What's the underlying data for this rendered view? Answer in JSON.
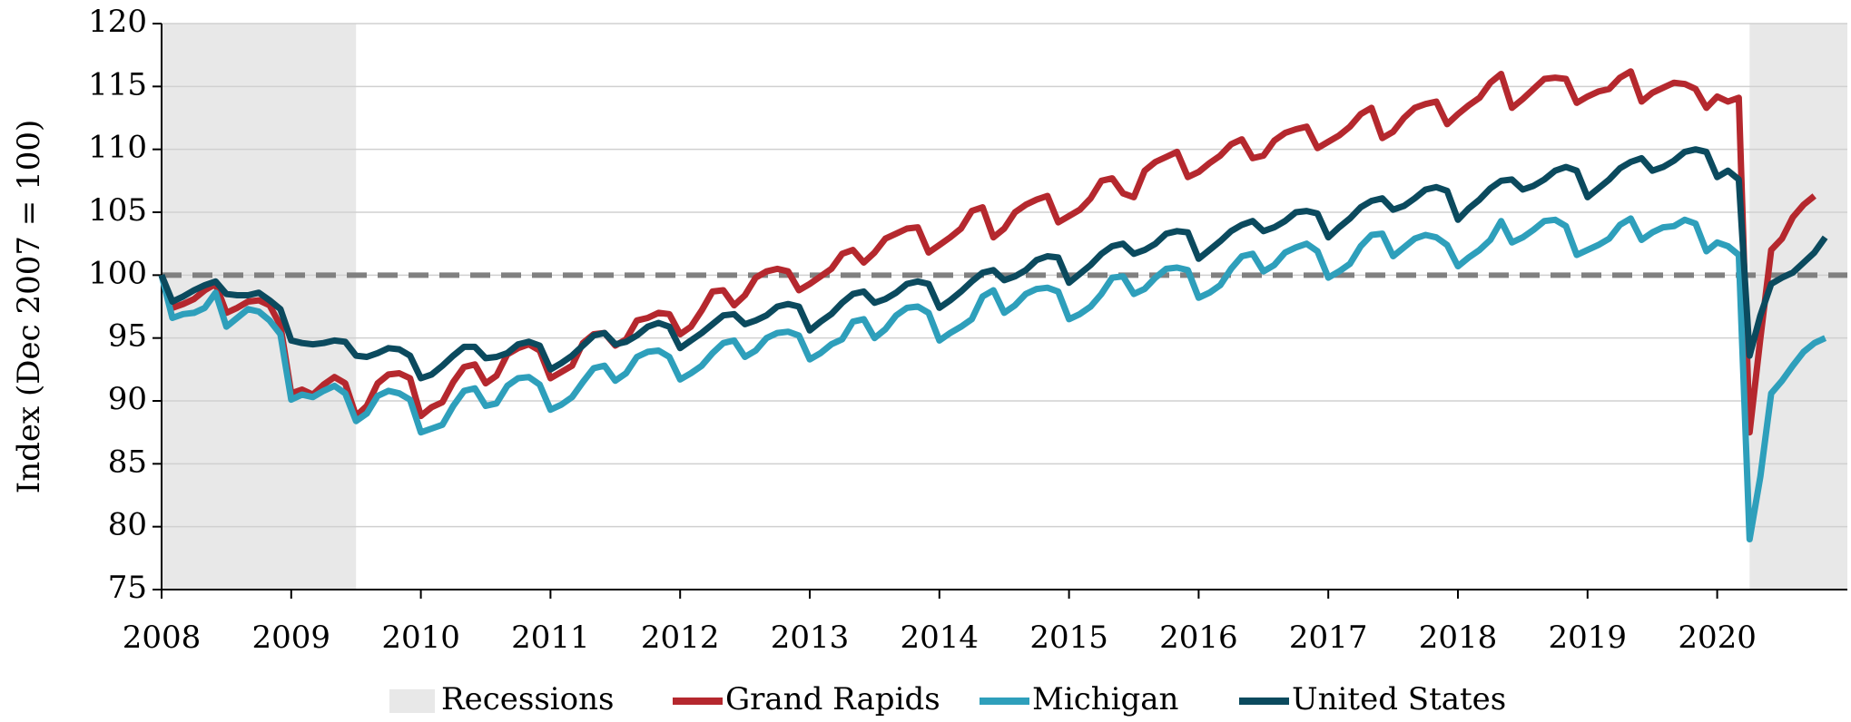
{
  "chart_data": {
    "type": "line",
    "y_label": "Index (Dec 2007 = 100)",
    "categories": [
      "2008",
      null,
      null,
      null,
      null,
      null,
      null,
      null,
      null,
      null,
      null,
      null,
      "2009",
      null,
      null,
      null,
      null,
      null,
      null,
      null,
      null,
      null,
      null,
      null,
      "2010",
      null,
      null,
      null,
      null,
      null,
      null,
      null,
      null,
      null,
      null,
      null,
      "2011",
      null,
      null,
      null,
      null,
      null,
      null,
      null,
      null,
      null,
      null,
      null,
      "2012",
      null,
      null,
      null,
      null,
      null,
      null,
      null,
      null,
      null,
      null,
      null,
      "2013",
      null,
      null,
      null,
      null,
      null,
      null,
      null,
      null,
      null,
      null,
      null,
      "2014",
      null,
      null,
      null,
      null,
      null,
      null,
      null,
      null,
      null,
      null,
      null,
      "2015",
      null,
      null,
      null,
      null,
      null,
      null,
      null,
      null,
      null,
      null,
      null,
      "2016",
      null,
      null,
      null,
      null,
      null,
      null,
      null,
      null,
      null,
      null,
      null,
      "2017",
      null,
      null,
      null,
      null,
      null,
      null,
      null,
      null,
      null,
      null,
      null,
      "2018",
      null,
      null,
      null,
      null,
      null,
      null,
      null,
      null,
      null,
      null,
      null,
      "2019",
      null,
      null,
      null,
      null,
      null,
      null,
      null,
      null,
      null,
      null,
      null,
      "2020",
      null,
      null,
      null,
      null,
      null,
      null,
      null,
      null,
      null,
      null
    ],
    "ylim": [
      75,
      120
    ],
    "yticks": [
      75,
      80,
      85,
      90,
      95,
      100,
      105,
      110,
      115,
      120
    ],
    "grid": true,
    "reference_line": {
      "value": 100,
      "color": "#808080"
    },
    "recessions": {
      "name": "Recessions",
      "color": "#e8e8e8",
      "spans": [
        [
          0,
          18
        ],
        [
          147,
          154
        ]
      ]
    },
    "series": [
      {
        "name": "Grand Rapids",
        "color": "#b5282e",
        "values": [
          100,
          97.4,
          97.7,
          98.1,
          98.8,
          99.3,
          97.0,
          97.4,
          97.9,
          98.0,
          97.6,
          96.0,
          90.6,
          90.9,
          90.5,
          91.3,
          91.9,
          91.4,
          88.8,
          89.6,
          91.4,
          92.1,
          92.2,
          91.8,
          88.8,
          89.5,
          89.9,
          91.5,
          92.7,
          92.9,
          91.4,
          92.0,
          93.7,
          94.2,
          94.5,
          94.0,
          91.8,
          92.3,
          92.8,
          94.6,
          95.3,
          95.4,
          94.4,
          94.9,
          96.4,
          96.6,
          97.0,
          96.9,
          95.3,
          95.9,
          97.2,
          98.7,
          98.8,
          97.6,
          98.4,
          99.8,
          100.3,
          100.5,
          100.3,
          98.8,
          99.3,
          99.9,
          100.5,
          101.7,
          102.0,
          101.0,
          101.8,
          102.9,
          103.3,
          103.7,
          103.8,
          101.8,
          102.4,
          103.0,
          103.7,
          105.1,
          105.4,
          103.0,
          103.7,
          105.0,
          105.6,
          106.0,
          106.3,
          104.2,
          104.7,
          105.2,
          106.1,
          107.5,
          107.7,
          106.5,
          106.2,
          108.3,
          109.0,
          109.4,
          109.8,
          107.8,
          108.2,
          108.9,
          109.5,
          110.4,
          110.8,
          109.3,
          109.5,
          110.7,
          111.3,
          111.6,
          111.8,
          110.1,
          110.6,
          111.1,
          111.8,
          112.8,
          113.3,
          110.9,
          111.4,
          112.5,
          113.3,
          113.6,
          113.8,
          112.0,
          112.8,
          113.5,
          114.1,
          115.3,
          116.0,
          113.3,
          114.0,
          114.8,
          115.6,
          115.7,
          115.6,
          113.7,
          114.2,
          114.6,
          114.8,
          115.7,
          116.2,
          113.8,
          114.5,
          114.9,
          115.3,
          115.2,
          114.8,
          113.3,
          114.2,
          113.8,
          114.1,
          87.5,
          95.0,
          102.0,
          102.9,
          104.6,
          105.6,
          106.3,
          null
        ]
      },
      {
        "name": "Michigan",
        "color": "#2e9fbb",
        "values": [
          100,
          96.6,
          96.9,
          97.0,
          97.4,
          98.6,
          95.9,
          96.6,
          97.3,
          97.1,
          96.4,
          95.3,
          90.1,
          90.5,
          90.3,
          90.8,
          91.2,
          90.6,
          88.4,
          89.0,
          90.4,
          90.8,
          90.6,
          90.1,
          87.5,
          87.8,
          88.1,
          89.6,
          90.8,
          91.0,
          89.6,
          89.8,
          91.2,
          91.8,
          91.9,
          91.3,
          89.3,
          89.7,
          90.3,
          91.5,
          92.6,
          92.8,
          91.6,
          92.2,
          93.5,
          93.9,
          94.0,
          93.5,
          91.7,
          92.2,
          92.8,
          93.8,
          94.6,
          94.8,
          93.5,
          94.0,
          95.0,
          95.4,
          95.5,
          95.2,
          93.3,
          93.8,
          94.5,
          94.9,
          96.3,
          96.5,
          95.0,
          95.7,
          96.8,
          97.4,
          97.5,
          97.0,
          94.8,
          95.4,
          95.9,
          96.5,
          98.3,
          98.8,
          97.0,
          97.6,
          98.5,
          98.9,
          99.0,
          98.7,
          96.5,
          96.9,
          97.5,
          98.5,
          99.8,
          99.9,
          98.5,
          98.9,
          99.8,
          100.5,
          100.6,
          100.4,
          98.2,
          98.6,
          99.2,
          100.5,
          101.5,
          101.7,
          100.3,
          100.8,
          101.8,
          102.2,
          102.5,
          101.9,
          99.8,
          100.3,
          100.9,
          102.3,
          103.2,
          103.3,
          101.5,
          102.2,
          102.9,
          103.2,
          103.0,
          102.4,
          100.7,
          101.4,
          102.0,
          102.8,
          104.3,
          102.6,
          103.0,
          103.6,
          104.3,
          104.4,
          103.9,
          101.6,
          102.0,
          102.4,
          102.9,
          104.0,
          104.5,
          102.8,
          103.4,
          103.8,
          103.9,
          104.4,
          104.1,
          101.9,
          102.6,
          102.3,
          101.6,
          79.0,
          84.0,
          90.6,
          91.6,
          92.8,
          93.9,
          94.6,
          95.0
        ]
      },
      {
        "name": "United States",
        "color": "#0b4a5e",
        "values": [
          100,
          97.9,
          98.3,
          98.8,
          99.2,
          99.5,
          98.5,
          98.4,
          98.4,
          98.6,
          98.0,
          97.3,
          94.8,
          94.6,
          94.5,
          94.6,
          94.8,
          94.7,
          93.6,
          93.5,
          93.8,
          94.2,
          94.1,
          93.6,
          91.8,
          92.1,
          92.8,
          93.6,
          94.3,
          94.3,
          93.4,
          93.5,
          93.8,
          94.5,
          94.7,
          94.4,
          92.5,
          93.0,
          93.6,
          94.4,
          95.2,
          95.4,
          94.5,
          94.7,
          95.2,
          95.9,
          96.2,
          95.9,
          94.2,
          94.8,
          95.4,
          96.1,
          96.8,
          96.9,
          96.1,
          96.4,
          96.8,
          97.5,
          97.7,
          97.5,
          95.6,
          96.3,
          96.9,
          97.8,
          98.5,
          98.7,
          97.8,
          98.1,
          98.6,
          99.3,
          99.5,
          99.3,
          97.4,
          98.0,
          98.7,
          99.5,
          100.2,
          100.4,
          99.6,
          99.9,
          100.4,
          101.2,
          101.5,
          101.4,
          99.4,
          100.1,
          100.8,
          101.7,
          102.3,
          102.5,
          101.7,
          102.0,
          102.5,
          103.3,
          103.5,
          103.4,
          101.3,
          102.0,
          102.7,
          103.5,
          104.0,
          104.3,
          103.5,
          103.8,
          104.3,
          105.0,
          105.1,
          104.9,
          103.0,
          103.8,
          104.5,
          105.4,
          105.9,
          106.1,
          105.2,
          105.5,
          106.1,
          106.8,
          107.0,
          106.7,
          104.4,
          105.3,
          106.0,
          106.9,
          107.5,
          107.6,
          106.8,
          107.1,
          107.6,
          108.3,
          108.6,
          108.3,
          106.2,
          106.9,
          107.6,
          108.5,
          109.0,
          109.3,
          108.3,
          108.6,
          109.1,
          109.8,
          110.0,
          109.8,
          107.8,
          108.3,
          107.6,
          93.6,
          96.8,
          99.3,
          99.8,
          100.2,
          101.0,
          101.8,
          103.0
        ]
      }
    ]
  }
}
